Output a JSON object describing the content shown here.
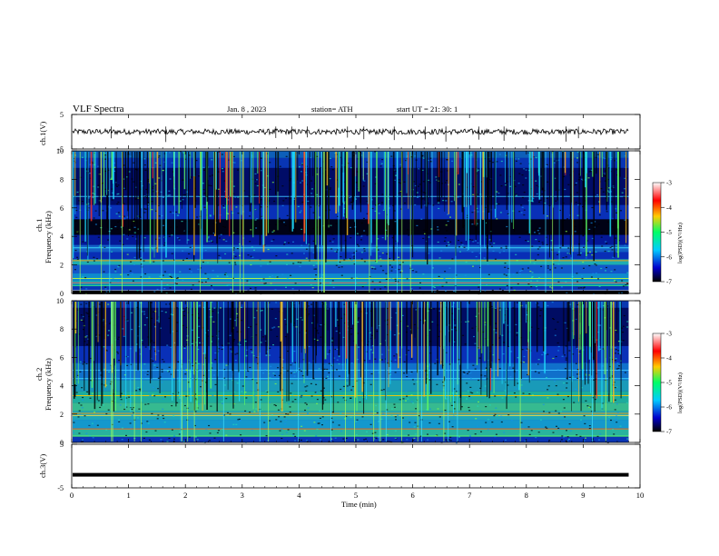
{
  "header": {
    "title": "VLF  Spectra",
    "date": "Jan.  8  ,  2023",
    "station": "station= ATH",
    "start": "start  UT  =    21: 30: 1"
  },
  "chart_data": [
    {
      "type": "line",
      "panel": "ch1-waveform",
      "ylabel": "ch.1(V)",
      "ylim": [
        -5,
        5
      ],
      "yticks": [
        "5",
        "-5"
      ],
      "xlim": [
        0,
        10
      ],
      "baseline": 0,
      "color": "#000000"
    },
    {
      "type": "heatmap",
      "panel": "ch1-spectrogram",
      "ylabel": "ch.1\nFrequency  (kHz)",
      "ylim": [
        0,
        10
      ],
      "yticks": [
        "10",
        "8",
        "6",
        "4",
        "2",
        "0"
      ],
      "xlim": [
        0,
        9.8
      ],
      "colorbar": {
        "label": "log(PSD)(V²/Hz)",
        "range": [
          -7,
          -3
        ],
        "ticks": [
          "-3",
          "-4",
          "-5",
          "-6",
          "-7"
        ],
        "colormap": [
          "#000000",
          "#0000cc",
          "#00ccff",
          "#00ff66",
          "#ffcc00",
          "#ff0000",
          "#ffffff"
        ]
      }
    },
    {
      "type": "heatmap",
      "panel": "ch2-spectrogram",
      "ylabel": "ch.2\nFrequency  (kHz)",
      "ylim": [
        0,
        10
      ],
      "yticks": [
        "10",
        "8",
        "6",
        "4",
        "2",
        "0"
      ],
      "xlim": [
        0,
        9.8
      ],
      "colorbar": {
        "label": "log(PSD)(V²/Hz)",
        "range": [
          -7,
          -3
        ],
        "ticks": [
          "-3",
          "-4",
          "-5",
          "-6",
          "-7"
        ],
        "colormap": [
          "#000000",
          "#0000cc",
          "#00ccff",
          "#00ff66",
          "#ffcc00",
          "#ff0000",
          "#ffffff"
        ]
      }
    },
    {
      "type": "line",
      "panel": "ch3-waveform",
      "ylabel": "ch.3(V)",
      "ylim": [
        -5,
        5
      ],
      "yticks": [
        "5",
        "-5"
      ],
      "xlim": [
        0,
        10
      ],
      "baseline": -2.0,
      "color": "#000000"
    }
  ],
  "xaxis": {
    "label": "Time  (min)",
    "range": [
      0,
      10
    ],
    "ticks": [
      "0",
      "1",
      "2",
      "3",
      "4",
      "5",
      "6",
      "7",
      "8",
      "9",
      "10"
    ]
  }
}
